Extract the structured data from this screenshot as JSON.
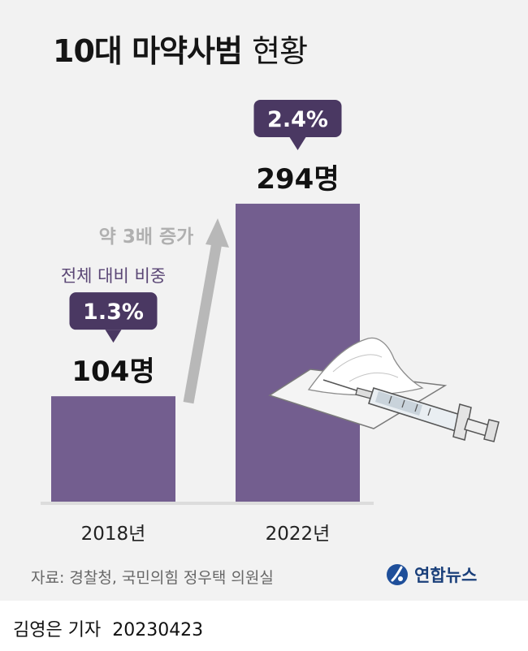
{
  "title_bold": "10대 마약사범",
  "title_light": "현황",
  "chart_data": {
    "type": "bar",
    "title": "10대 마약사범 현황",
    "categories": [
      "2018년",
      "2022년"
    ],
    "values": [
      104,
      294
    ],
    "value_labels": [
      "104명",
      "294명"
    ],
    "share_caption": "전체 대비 비중",
    "share_labels": [
      "1.3%",
      "2.4%"
    ],
    "shares": [
      1.3,
      2.4
    ],
    "annotation": "약 3배 증가",
    "ylim": [
      0,
      330
    ],
    "bar_color": "#735e8f",
    "callout_color": "#4a3862"
  },
  "source": "자료: 경찰청, 국민의힘 정우택 의원실",
  "logo": {
    "text": "연합뉴스",
    "icon": "yonhap-logo-icon"
  },
  "byline": {
    "reporter": "김영은 기자",
    "date": "20230423"
  }
}
